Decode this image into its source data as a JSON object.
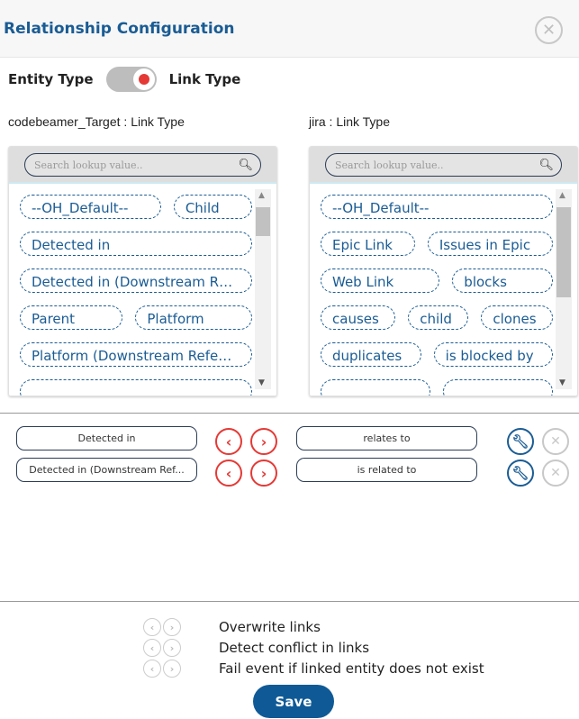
{
  "dialog": {
    "title": "Relationship Configuration",
    "close_icon": "close-icon"
  },
  "toggle": {
    "left_label": "Entity Type",
    "right_label": "Link Type",
    "state": "on",
    "knob_color": "#e53935"
  },
  "left": {
    "label": "codebeamer_Target : Link Type",
    "search_placeholder": "Search lookup value..",
    "rows": [
      [
        "--OH_Default--",
        "Child"
      ],
      [
        "Detected in"
      ],
      [
        "Detected in (Downstream R…"
      ],
      [
        "Parent",
        "Platform"
      ],
      [
        "Platform (Downstream Refe…"
      ],
      [
        ""
      ]
    ]
  },
  "right": {
    "label": "jira : Link Type",
    "search_placeholder": "Search lookup value..",
    "rows": [
      [
        "--OH_Default--"
      ],
      [
        "Epic Link",
        "Issues in Epic"
      ],
      [
        "Web Link",
        "blocks"
      ],
      [
        "causes",
        "child",
        "clones"
      ],
      [
        "duplicates",
        "is blocked by"
      ],
      [
        "",
        ""
      ]
    ]
  },
  "mappings": [
    {
      "source": "Detected in",
      "target": "relates to"
    },
    {
      "source": "Detected in (Downstream Ref...",
      "target": "is related to"
    }
  ],
  "options": [
    "Overwrite links",
    "Detect conflict in links",
    "Fail event if linked entity does not exist"
  ],
  "save_label": "Save",
  "colors": {
    "accent": "#1a5c94",
    "arrow": "#e53935",
    "save": "#0f5a96"
  }
}
